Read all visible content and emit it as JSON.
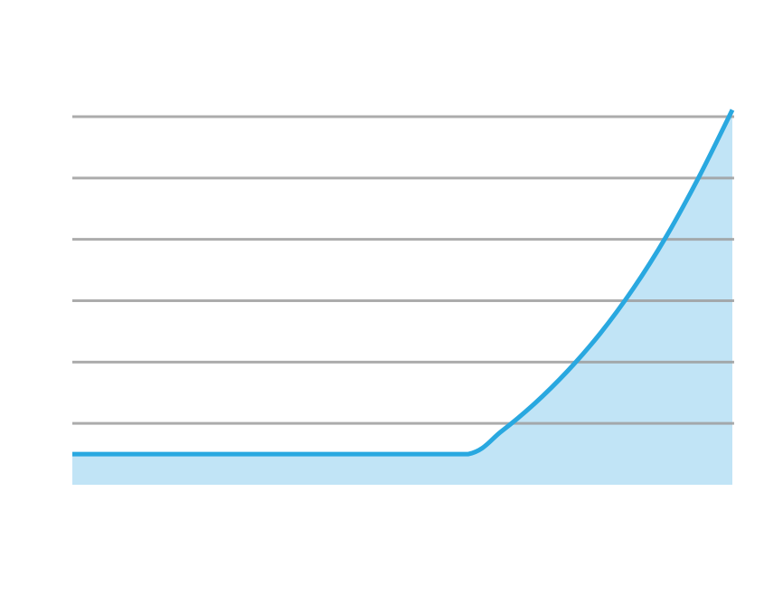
{
  "chart_data": {
    "type": "area",
    "title": "",
    "xlabel": "",
    "ylabel": "",
    "x": [
      0,
      10,
      20,
      30,
      40,
      50,
      60,
      65,
      70,
      75,
      80,
      85,
      90,
      95,
      100
    ],
    "series": [
      {
        "values": [
          0.5,
          0.5,
          0.5,
          0.5,
          0.5,
          0.5,
          0.5,
          0.87,
          1.32,
          1.85,
          2.47,
          3.2,
          4.05,
          5.03,
          6.11
        ]
      }
    ],
    "xlim": [
      0,
      100
    ],
    "ylim": [
      0,
      6
    ],
    "gridlines_y": [
      1,
      2,
      3,
      4,
      5,
      6
    ],
    "grid": true,
    "legend": "none",
    "colors": {
      "line": "#29a8e0",
      "fill": "#bee3f5",
      "grid": "#9e9e9e"
    }
  }
}
